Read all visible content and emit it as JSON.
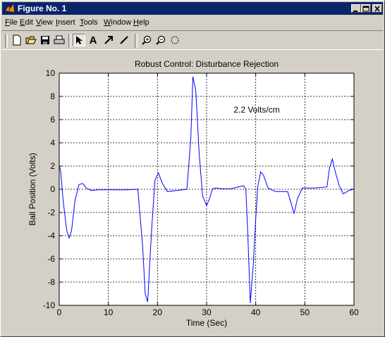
{
  "window": {
    "title": "Figure No. 1"
  },
  "menu": [
    {
      "label": "File",
      "u": "F",
      "rest": "ile"
    },
    {
      "label": "Edit",
      "u": "E",
      "rest": "dit"
    },
    {
      "label": "View",
      "u": "V",
      "rest": "iew"
    },
    {
      "label": "Insert",
      "u": "I",
      "rest": "nsert"
    },
    {
      "label": "Tools",
      "u": "T",
      "rest": "ools"
    },
    {
      "label": "Window",
      "u": "W",
      "rest": "indow"
    },
    {
      "label": "Help",
      "u": "H",
      "rest": "elp"
    }
  ],
  "toolbar": {
    "tools": [
      "new-icon",
      "open-icon",
      "save-icon",
      "print-icon",
      "arrow-select-icon",
      "text-icon",
      "arrow-icon",
      "line-icon",
      "zoom-in-icon",
      "zoom-out-icon",
      "rotate-icon"
    ],
    "text_tool_label": "A"
  },
  "colors": {
    "titlebar": "#0a246a",
    "plot_line": "#0000ff",
    "background": "#d4d0c8"
  },
  "chart_data": {
    "type": "line",
    "title": "Robust Control: Disturbance Rejection",
    "xlabel": "Time (Sec)",
    "ylabel": "Ball Position (Volts)",
    "xlim": [
      0,
      60
    ],
    "ylim": [
      -10,
      10
    ],
    "xticks": [
      0,
      10,
      20,
      30,
      40,
      50,
      60
    ],
    "yticks": [
      -10,
      -8,
      -6,
      -4,
      -2,
      0,
      2,
      4,
      6,
      8,
      10
    ],
    "grid": true,
    "annotation": "2.2 Volts/cm",
    "series": [
      {
        "color": "#0000ff",
        "x": [
          0,
          0.3,
          0.8,
          1.5,
          2.0,
          2.5,
          3.2,
          4.0,
          4.8,
          5.5,
          6.5,
          8.0,
          10,
          12,
          14,
          16,
          17.0,
          17.5,
          18.0,
          18.8,
          19.5,
          20.2,
          21.0,
          22.0,
          24.0,
          26.0,
          26.8,
          27.2,
          27.8,
          28.5,
          29.2,
          30.0,
          30.6,
          31.2,
          32.0,
          33.0,
          35.0,
          37.5,
          38.0,
          38.4,
          38.9,
          39.5,
          40.0,
          40.4,
          41.0,
          41.6,
          42.5,
          44.0,
          46.5,
          47.2,
          47.8,
          48.5,
          49.5,
          52.0,
          54.5,
          55.0,
          55.6,
          56.2,
          57.0,
          57.8,
          59.0,
          60
        ],
        "y": [
          2.1,
          1.5,
          -1.0,
          -3.5,
          -4.2,
          -3.6,
          -1.0,
          0.4,
          0.5,
          0.1,
          -0.1,
          -0.05,
          -0.05,
          -0.05,
          -0.05,
          0,
          -5.0,
          -9.0,
          -9.7,
          -3.5,
          0.8,
          1.4,
          0.5,
          -0.2,
          -0.1,
          0,
          4.5,
          9.7,
          8.5,
          3.0,
          -0.6,
          -1.4,
          -0.8,
          0.05,
          0.1,
          0.05,
          0.05,
          0.3,
          0,
          -4.0,
          -9.8,
          -6.5,
          -2.5,
          0.2,
          1.5,
          1.2,
          0.1,
          -0.2,
          -0.2,
          -1.2,
          -2.1,
          -0.8,
          0.1,
          0.1,
          0.2,
          1.8,
          2.6,
          1.5,
          0.3,
          -0.4,
          -0.1,
          0
        ]
      }
    ]
  }
}
